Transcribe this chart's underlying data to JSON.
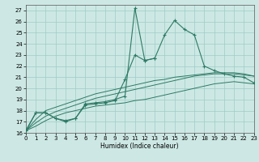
{
  "xlabel": "Humidex (Indice chaleur)",
  "x": [
    0,
    1,
    2,
    3,
    4,
    5,
    6,
    7,
    8,
    9,
    10,
    11,
    12,
    13,
    14,
    15,
    16,
    17,
    18,
    19,
    20,
    21,
    22,
    23
  ],
  "line_main": [
    16.2,
    17.8,
    17.8,
    17.3,
    17.1,
    17.3,
    18.6,
    18.7,
    18.8,
    19.0,
    19.3,
    27.2,
    22.5,
    22.7,
    24.8,
    26.1,
    25.3,
    24.8,
    22.0,
    21.6,
    21.3,
    21.1,
    21.0,
    20.5
  ],
  "line_secondary": [
    16.2,
    17.8,
    17.8,
    17.3,
    17.0,
    17.3,
    18.5,
    18.6,
    18.7,
    18.9,
    20.8,
    23.0,
    22.5,
    22.7,
    null,
    null,
    null,
    null,
    null,
    null,
    null,
    null,
    null,
    null
  ],
  "line_straight1": [
    16.2,
    16.6,
    17.1,
    17.5,
    17.8,
    18.0,
    18.2,
    18.4,
    18.5,
    18.6,
    18.7,
    18.9,
    19.0,
    19.2,
    19.4,
    19.6,
    19.8,
    20.0,
    20.2,
    20.4,
    20.5,
    20.6,
    20.5,
    20.4
  ],
  "line_straight2": [
    16.2,
    16.9,
    17.5,
    17.9,
    18.2,
    18.5,
    18.8,
    19.1,
    19.3,
    19.5,
    19.7,
    19.9,
    20.1,
    20.3,
    20.5,
    20.7,
    20.9,
    21.1,
    21.2,
    21.3,
    21.3,
    21.3,
    21.2,
    21.1
  ],
  "line_straight3": [
    16.2,
    17.2,
    18.0,
    18.3,
    18.6,
    18.9,
    19.2,
    19.5,
    19.7,
    19.9,
    20.1,
    20.3,
    20.5,
    20.7,
    20.8,
    21.0,
    21.1,
    21.2,
    21.3,
    21.4,
    21.4,
    21.4,
    21.3,
    21.1
  ],
  "line_color": "#2d7a65",
  "bg_color": "#cde8e4",
  "grid_color": "#9dccc6",
  "ylim": [
    16,
    27.5
  ],
  "xlim": [
    0,
    23
  ],
  "yticks": [
    16,
    17,
    18,
    19,
    20,
    21,
    22,
    23,
    24,
    25,
    26,
    27
  ],
  "xticks": [
    0,
    1,
    2,
    3,
    4,
    5,
    6,
    7,
    8,
    9,
    10,
    11,
    12,
    13,
    14,
    15,
    16,
    17,
    18,
    19,
    20,
    21,
    22,
    23
  ]
}
